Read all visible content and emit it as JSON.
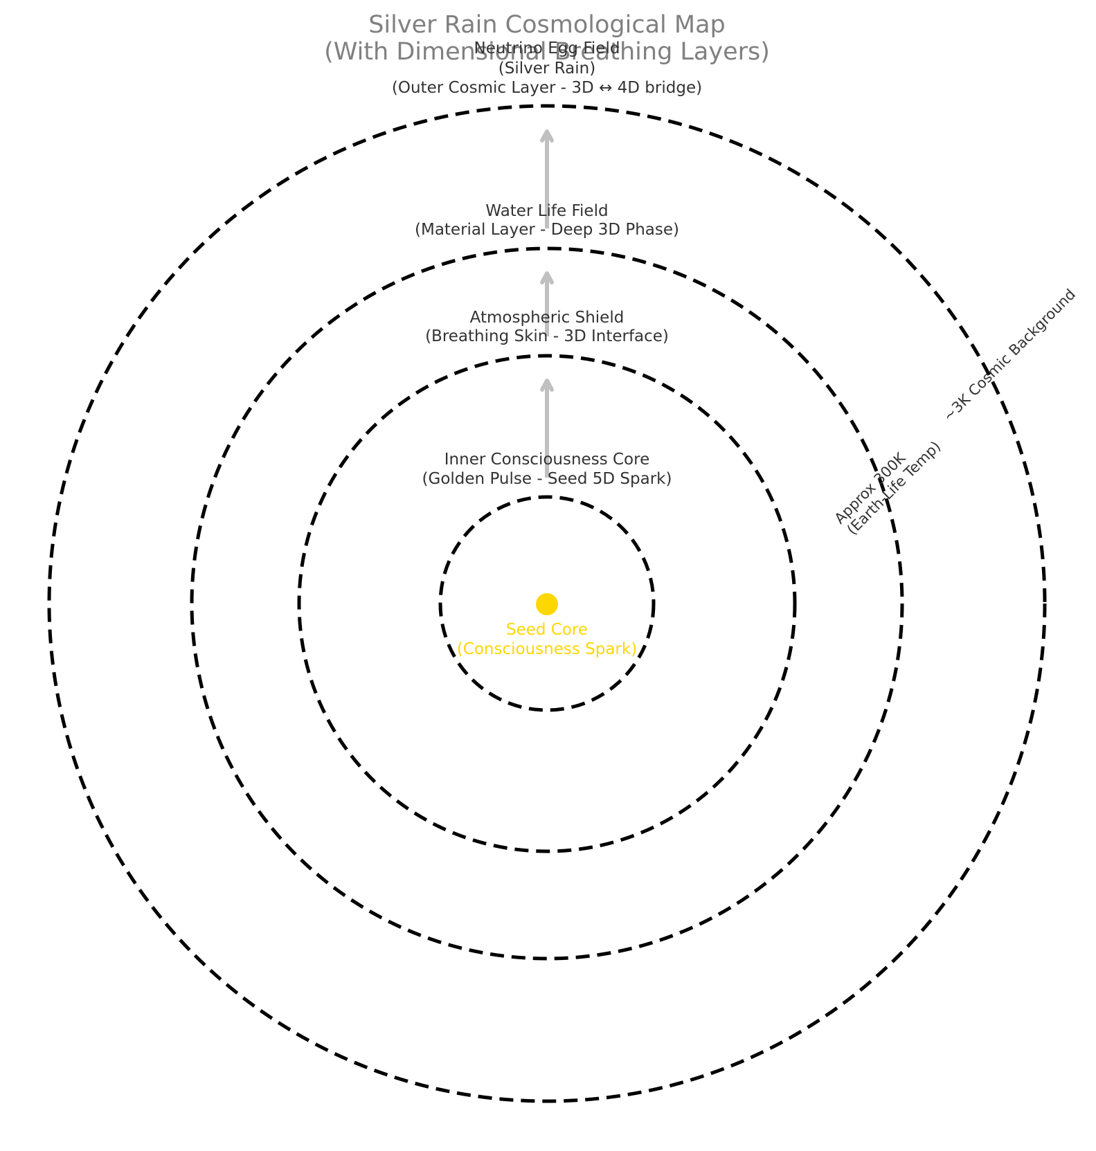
{
  "title": {
    "line1": "Silver Rain Cosmological Map",
    "line2": "(With Dimensional Breathing Layers)"
  },
  "layers": [
    {
      "id": "neutrino",
      "name": "Neutrino Egg Field",
      "line2": "(Silver Rain)",
      "line3": "(Outer Cosmic Layer - 3D ↔ 4D bridge)"
    },
    {
      "id": "water",
      "name": "Water Life Field",
      "line2": "(Material Layer - Deep 3D Phase)"
    },
    {
      "id": "atmosphere",
      "name": "Atmospheric Shield",
      "line2": "(Breathing Skin - 3D Interface)"
    },
    {
      "id": "inner",
      "name": "Inner Consciousness Core",
      "line2": "(Golden Pulse - Seed 5D Spark)"
    }
  ],
  "core": {
    "name": "Seed Core",
    "subtitle": "(Consciousness Spark)",
    "color": "#FFD700"
  },
  "temperatures": {
    "outer": "~3K Cosmic Background",
    "inner_line1": "Approx 300K",
    "inner_line2": "(Earth-Life Temp)"
  },
  "colors": {
    "ring": "#000000",
    "arrow": "#c0c0c0",
    "title": "#808080",
    "text": "#333333"
  }
}
